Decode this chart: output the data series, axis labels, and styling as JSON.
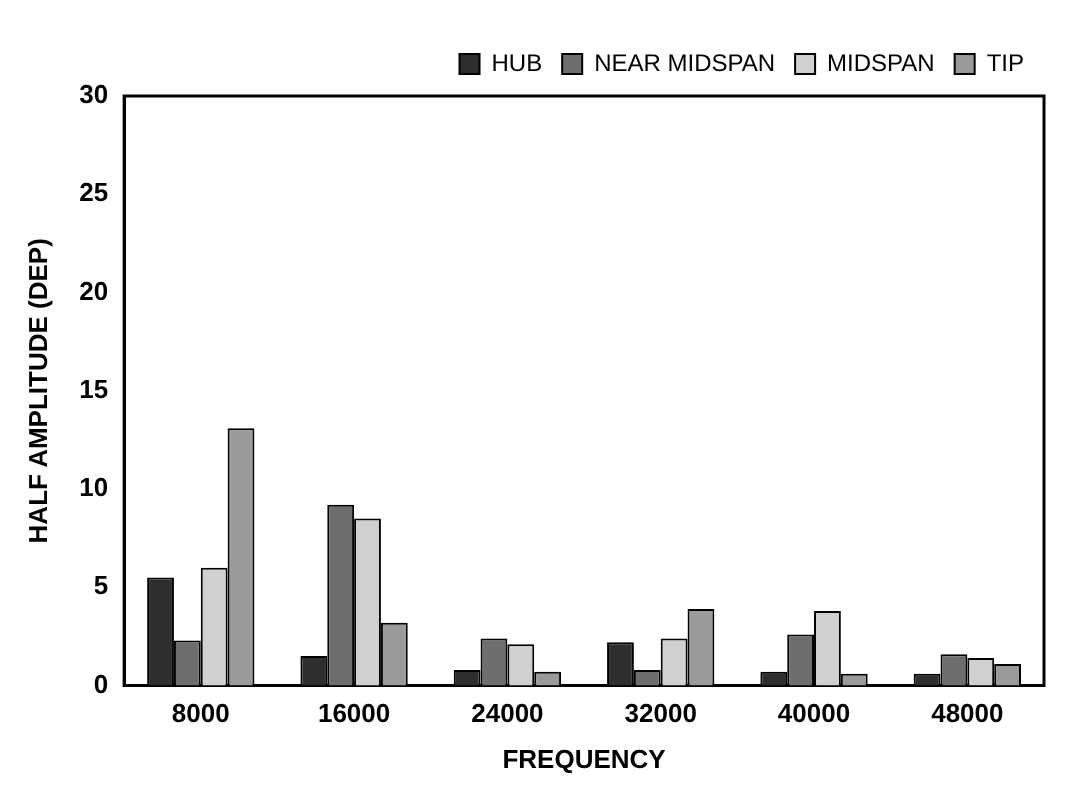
{
  "chart_data": {
    "type": "bar",
    "xlabel": "FREQUENCY",
    "ylabel": "HALF AMPLITUDE (DEP)",
    "categories": [
      "8000",
      "16000",
      "24000",
      "32000",
      "40000",
      "48000"
    ],
    "series": [
      {
        "name": "HUB",
        "color": "#2e2e2e",
        "values": [
          5.5,
          1.5,
          0.8,
          2.2,
          0.7,
          0.6
        ]
      },
      {
        "name": "NEAR MIDSPAN",
        "color": "#6e6e6e",
        "values": [
          2.3,
          9.2,
          2.4,
          0.8,
          2.6,
          1.6
        ]
      },
      {
        "name": "MIDSPAN",
        "color": "#d0d0d0",
        "values": [
          6.0,
          8.5,
          2.1,
          2.4,
          3.8,
          1.4
        ]
      },
      {
        "name": "TIP",
        "color": "#9a9a9a",
        "values": [
          13.1,
          3.2,
          0.7,
          3.9,
          0.6,
          1.1
        ]
      }
    ],
    "ylim": [
      0,
      30
    ],
    "yticks": [
      0,
      5,
      10,
      15,
      20,
      25,
      30
    ],
    "grid": false,
    "legend": "top right"
  }
}
